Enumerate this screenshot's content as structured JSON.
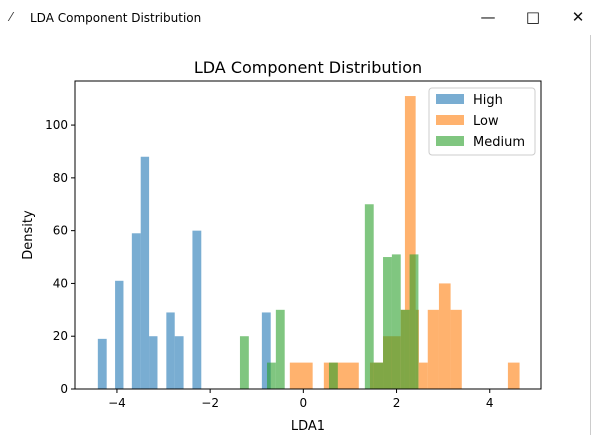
{
  "window": {
    "title": "LDA Component Distribution",
    "icon": "feather-icon",
    "controls": [
      "minimize-icon",
      "maximize-icon",
      "close-icon"
    ]
  },
  "chart_data": {
    "type": "histogram",
    "title": "LDA Component Distribution",
    "xlabel": "LDA1",
    "ylabel": "Density",
    "xlim": [
      -4.9,
      5.1
    ],
    "ylim": [
      0,
      116.7
    ],
    "xticks": [
      -4,
      -2,
      0,
      2,
      4
    ],
    "yticks": [
      0,
      20,
      40,
      60,
      80,
      100
    ],
    "grid": false,
    "legend_position": "top-right",
    "alpha": 0.6,
    "series": [
      {
        "name": "High",
        "color": "#1f77b4",
        "bins": [
          [
            -4.41,
            -4.22,
            19
          ],
          [
            -4.04,
            -3.86,
            41
          ],
          [
            -3.68,
            -3.49,
            59
          ],
          [
            -3.49,
            -3.31,
            88
          ],
          [
            -3.31,
            -3.13,
            20
          ],
          [
            -2.94,
            -2.76,
            29
          ],
          [
            -2.76,
            -2.57,
            20
          ],
          [
            -2.38,
            -2.19,
            60
          ],
          [
            -0.89,
            -0.7,
            29
          ]
        ]
      },
      {
        "name": "Low",
        "color": "#ff7f0e",
        "bins": [
          [
            -0.29,
            0.2,
            10
          ],
          [
            0.44,
            1.19,
            10
          ],
          [
            1.43,
            1.71,
            10
          ],
          [
            1.71,
            2.09,
            20
          ],
          [
            2.09,
            2.18,
            30
          ],
          [
            2.18,
            2.41,
            111
          ],
          [
            2.41,
            2.48,
            30
          ],
          [
            2.48,
            2.67,
            10
          ],
          [
            2.67,
            2.91,
            30
          ],
          [
            2.91,
            3.16,
            40
          ],
          [
            3.16,
            3.4,
            30
          ],
          [
            4.39,
            4.64,
            10
          ]
        ]
      },
      {
        "name": "Medium",
        "color": "#2ca02c",
        "bins": [
          [
            -1.36,
            -1.17,
            20
          ],
          [
            -0.78,
            -0.59,
            10
          ],
          [
            -0.59,
            -0.4,
            30
          ],
          [
            0.55,
            0.74,
            10
          ],
          [
            1.32,
            1.51,
            70
          ],
          [
            1.51,
            1.71,
            10
          ],
          [
            1.71,
            1.9,
            50
          ],
          [
            1.9,
            2.09,
            51
          ],
          [
            2.09,
            2.28,
            30
          ],
          [
            2.28,
            2.47,
            51
          ]
        ]
      }
    ]
  }
}
